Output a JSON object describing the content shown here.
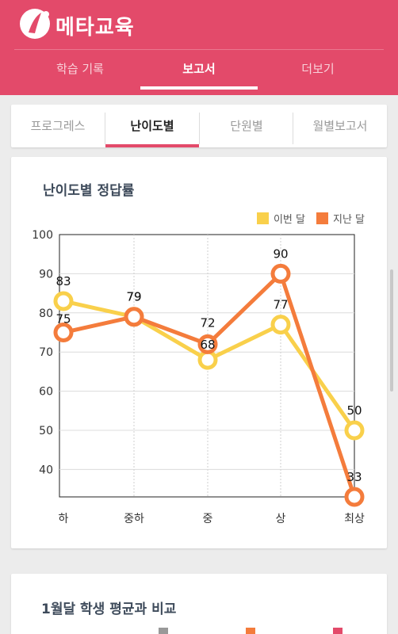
{
  "app": {
    "brand": "메타교육",
    "logo_letter": "i"
  },
  "main_tabs": [
    {
      "label": "학습 기록",
      "active": false
    },
    {
      "label": "보고서",
      "active": true
    },
    {
      "label": "더보기",
      "active": false
    }
  ],
  "sub_tabs": [
    {
      "label": "프로그레스",
      "active": false
    },
    {
      "label": "난이도별",
      "active": true
    },
    {
      "label": "단원별",
      "active": false
    },
    {
      "label": "월별보고서",
      "active": false
    }
  ],
  "card": {
    "title": "난이도별 정답률",
    "legend": [
      {
        "label": "이번 달",
        "color": "#f9d04b"
      },
      {
        "label": "지난 달",
        "color": "#f47c3c"
      }
    ]
  },
  "chart_data": {
    "type": "line",
    "categories": [
      "하",
      "중하",
      "중",
      "상",
      "최상"
    ],
    "series": [
      {
        "name": "이번 달",
        "color": "#f9d04b",
        "values": [
          83,
          79,
          68,
          77,
          50
        ]
      },
      {
        "name": "지난 달",
        "color": "#f47c3c",
        "values": [
          75,
          79,
          72,
          90,
          33
        ]
      }
    ],
    "y_ticks": [
      "100",
      "90",
      "80",
      "70",
      "60",
      "50",
      "40"
    ],
    "ylim": [
      33,
      100
    ],
    "grid": true,
    "legend_position": "top-right"
  },
  "card2": {
    "title": "1월달 학생 평균과 비교"
  }
}
